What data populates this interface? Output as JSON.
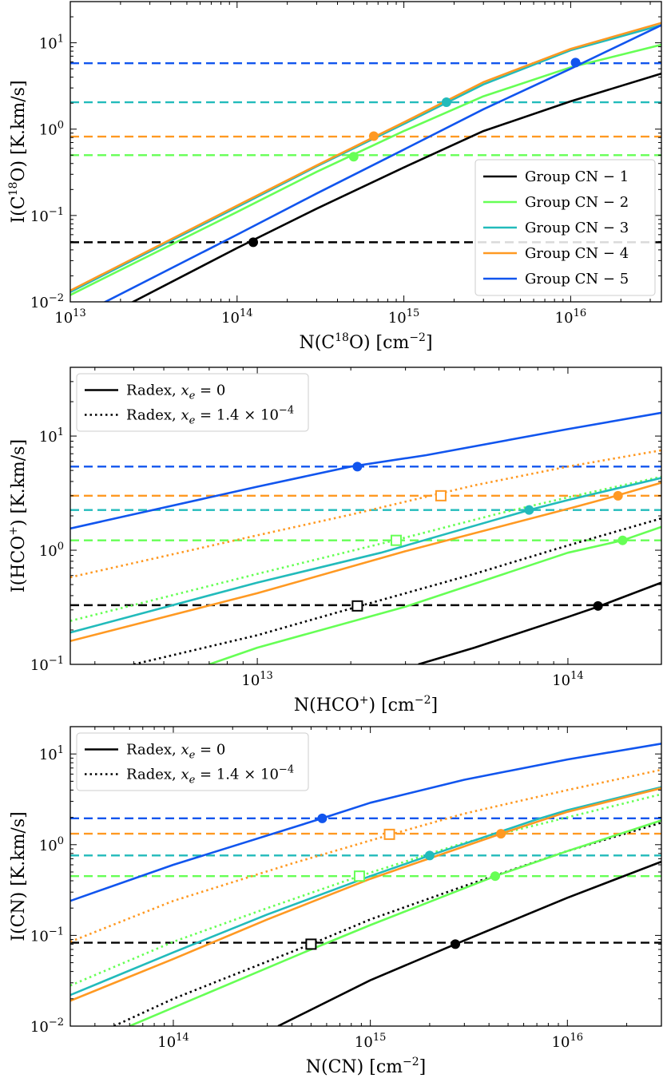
{
  "chart_data": [
    {
      "type": "line",
      "panel": "top",
      "xscale": "log",
      "yscale": "log",
      "xlim": [
        10000000000000.0,
        3.5e+16
      ],
      "ylim": [
        0.01,
        30
      ],
      "xlabel": {
        "pre": "N(C",
        "sup": "18",
        "post": "O) [cm",
        "sup2": "−2",
        "end": "]"
      },
      "ylabel": {
        "pre": "I(C",
        "sup": "18",
        "post": "O) [K.km/s]"
      },
      "xticks": [
        {
          "v": 10000000000000.0,
          "b": "10",
          "e": "13"
        },
        {
          "v": 100000000000000.0,
          "b": "10",
          "e": "14"
        },
        {
          "v": 1000000000000000.0,
          "b": "10",
          "e": "15"
        },
        {
          "v": 1e+16,
          "b": "10",
          "e": "16"
        }
      ],
      "yticks": [
        {
          "v": 0.01,
          "b": "10",
          "e": "−2"
        },
        {
          "v": 0.1,
          "b": "10",
          "e": "−1"
        },
        {
          "v": 1,
          "b": "10",
          "e": "0"
        },
        {
          "v": 10,
          "b": "10",
          "e": "1"
        }
      ],
      "legend": {
        "position": "lower right",
        "entries": [
          {
            "label": "Group CN − 1",
            "color": "#000000",
            "dash": "solid"
          },
          {
            "label": "Group CN − 2",
            "color": "#66ff55",
            "dash": "solid"
          },
          {
            "label": "Group CN − 3",
            "color": "#22bbbb",
            "dash": "solid"
          },
          {
            "label": "Group CN − 4",
            "color": "#ff9922",
            "dash": "solid"
          },
          {
            "label": "Group CN − 5",
            "color": "#1155ee",
            "dash": "solid"
          }
        ]
      },
      "series": [
        {
          "name": "Group CN − 1",
          "color": "#000000",
          "dash": "solid",
          "x": [
            10000000000000.0,
            100000000000000.0,
            300000000000000.0,
            1000000000000000.0,
            3000000000000000.0,
            1e+16,
            3.5e+16
          ],
          "y": [
            0.0042,
            0.042,
            0.12,
            0.36,
            0.95,
            2.1,
            4.4
          ]
        },
        {
          "name": "Group CN − 2",
          "color": "#66ff55",
          "dash": "solid",
          "x": [
            10000000000000.0,
            100000000000000.0,
            300000000000000.0,
            1000000000000000.0,
            3000000000000000.0,
            1e+16,
            3.5e+16
          ],
          "y": [
            0.012,
            0.11,
            0.32,
            0.95,
            2.4,
            5.2,
            9.5
          ]
        },
        {
          "name": "Group CN − 3",
          "color": "#22bbbb",
          "dash": "solid",
          "x": [
            10000000000000.0,
            100000000000000.0,
            300000000000000.0,
            1000000000000000.0,
            3000000000000000.0,
            1e+16,
            3.5e+16
          ],
          "y": [
            0.013,
            0.125,
            0.37,
            1.15,
            3.3,
            8.2,
            16
          ]
        },
        {
          "name": "Group CN − 4",
          "color": "#ff9922",
          "dash": "solid",
          "x": [
            10000000000000.0,
            100000000000000.0,
            300000000000000.0,
            1000000000000000.0,
            3000000000000000.0,
            1e+16,
            3.5e+16
          ],
          "y": [
            0.0135,
            0.13,
            0.38,
            1.2,
            3.5,
            8.5,
            17
          ]
        },
        {
          "name": "Group CN − 5",
          "color": "#1155ee",
          "dash": "solid",
          "x": [
            10000000000000.0,
            100000000000000.0,
            300000000000000.0,
            1000000000000000.0,
            3000000000000000.0,
            1e+16,
            3.5e+16
          ],
          "y": [
            0.0062,
            0.06,
            0.18,
            0.58,
            1.7,
            5.0,
            16
          ]
        }
      ],
      "hlines": [
        {
          "y": 5.8,
          "color": "#1155ee"
        },
        {
          "y": 2.05,
          "color": "#22bbbb"
        },
        {
          "y": 0.82,
          "color": "#ff9922"
        },
        {
          "y": 0.5,
          "color": "#66ff55"
        },
        {
          "y": 0.049,
          "color": "#000000"
        }
      ],
      "points": [
        {
          "x": 125000000000000.0,
          "y": 0.049,
          "color": "#000000",
          "marker": "circle"
        },
        {
          "x": 500000000000000.0,
          "y": 0.48,
          "color": "#66ff55",
          "marker": "circle"
        },
        {
          "x": 660000000000000.0,
          "y": 0.83,
          "color": "#ff9922",
          "marker": "circle"
        },
        {
          "x": 1800000000000000.0,
          "y": 2.05,
          "color": "#22bbbb",
          "marker": "circle"
        },
        {
          "x": 1.07e+16,
          "y": 5.9,
          "color": "#1155ee",
          "marker": "circle"
        }
      ]
    },
    {
      "type": "line",
      "panel": "middle",
      "xscale": "log",
      "yscale": "log",
      "xlim": [
        2500000000000.0,
        200000000000000.0
      ],
      "ylim": [
        0.1,
        40
      ],
      "xlabel": {
        "pre": "N(HCO",
        "sup": "+",
        "post": ") [cm",
        "sup2": "−2",
        "end": "]"
      },
      "ylabel": {
        "pre": "I(HCO",
        "sup": "+",
        "post": ") [K.km/s]"
      },
      "xticks": [
        {
          "v": 10000000000000.0,
          "b": "10",
          "e": "13"
        },
        {
          "v": 100000000000000.0,
          "b": "10",
          "e": "14"
        }
      ],
      "yticks": [
        {
          "v": 0.1,
          "b": "10",
          "e": "−1"
        },
        {
          "v": 1,
          "b": "10",
          "e": "0"
        },
        {
          "v": 10,
          "b": "10",
          "e": "1"
        }
      ],
      "legend": {
        "position": "upper left",
        "entries": [
          {
            "label": "Radex, ",
            "math": "x",
            "sub": "e",
            "tail": " = 0",
            "color": "#000000",
            "dash": "solid"
          },
          {
            "label": "Radex, ",
            "math": "x",
            "sub": "e",
            "tail": " = 1.4 × 10",
            "sup": "−4",
            "color": "#000000",
            "dash": "dotted"
          }
        ]
      },
      "series": [
        {
          "name": "blue solid",
          "color": "#1155ee",
          "dash": "solid",
          "x": [
            2500000000000.0,
            10000000000000.0,
            20000000000000.0,
            35000000000000.0,
            100000000000000.0,
            200000000000000.0
          ],
          "y": [
            1.55,
            3.6,
            5.4,
            6.8,
            11.5,
            16
          ]
        },
        {
          "name": "orange dotted",
          "color": "#ff9922",
          "dash": "dotted",
          "x": [
            2500000000000.0,
            10000000000000.0,
            20000000000000.0,
            50000000000000.0,
            100000000000000.0,
            200000000000000.0
          ],
          "y": [
            0.58,
            1.35,
            2.05,
            3.7,
            5.4,
            7.5
          ]
        },
        {
          "name": "green dotted",
          "color": "#66ff55",
          "dash": "dotted",
          "x": [
            2500000000000.0,
            10000000000000.0,
            28000000000000.0,
            60000000000000.0,
            100000000000000.0,
            200000000000000.0
          ],
          "y": [
            0.24,
            0.62,
            1.23,
            2.1,
            2.9,
            4.4
          ]
        },
        {
          "name": "cyan solid",
          "color": "#22bbbb",
          "dash": "solid",
          "x": [
            2500000000000.0,
            10000000000000.0,
            25000000000000.0,
            75000000000000.0,
            100000000000000.0,
            200000000000000.0
          ],
          "y": [
            0.19,
            0.52,
            0.95,
            2.25,
            2.75,
            4.3
          ]
        },
        {
          "name": "orange solid",
          "color": "#ff9922",
          "dash": "solid",
          "x": [
            2500000000000.0,
            10000000000000.0,
            30000000000000.0,
            100000000000000.0,
            140000000000000.0,
            200000000000000.0
          ],
          "y": [
            0.16,
            0.42,
            0.98,
            2.3,
            2.95,
            3.9
          ]
        },
        {
          "name": "black dotted",
          "color": "#000000",
          "dash": "dotted",
          "x": [
            4000000000000.0,
            10000000000000.0,
            21000000000000.0,
            50000000000000.0,
            100000000000000.0,
            200000000000000.0
          ],
          "y": [
            0.1,
            0.18,
            0.32,
            0.62,
            1.1,
            1.9
          ]
        },
        {
          "name": "green solid",
          "color": "#66ff55",
          "dash": "solid",
          "x": [
            7000000000000.0,
            10000000000000.0,
            30000000000000.0,
            100000000000000.0,
            150000000000000.0,
            200000000000000.0
          ],
          "y": [
            0.1,
            0.14,
            0.32,
            0.95,
            1.22,
            1.6
          ]
        },
        {
          "name": "black solid",
          "color": "#000000",
          "dash": "solid",
          "x": [
            33000000000000.0,
            50000000000000.0,
            100000000000000.0,
            125000000000000.0,
            200000000000000.0
          ],
          "y": [
            0.1,
            0.14,
            0.26,
            0.32,
            0.52
          ]
        }
      ],
      "hlines": [
        {
          "y": 5.4,
          "color": "#1155ee"
        },
        {
          "y": 3.0,
          "color": "#ff9922"
        },
        {
          "y": 2.25,
          "color": "#22bbbb"
        },
        {
          "y": 1.22,
          "color": "#66ff55"
        },
        {
          "y": 0.33,
          "color": "#000000"
        }
      ],
      "points": [
        {
          "x": 21000000000000.0,
          "y": 5.4,
          "color": "#1155ee",
          "marker": "circle"
        },
        {
          "x": 39000000000000.0,
          "y": 3.0,
          "color": "#ff9922",
          "marker": "square"
        },
        {
          "x": 145000000000000.0,
          "y": 3.0,
          "color": "#ff9922",
          "marker": "circle"
        },
        {
          "x": 75000000000000.0,
          "y": 2.25,
          "color": "#22bbbb",
          "marker": "circle"
        },
        {
          "x": 28000000000000.0,
          "y": 1.22,
          "color": "#66ff55",
          "marker": "square"
        },
        {
          "x": 150000000000000.0,
          "y": 1.22,
          "color": "#66ff55",
          "marker": "circle"
        },
        {
          "x": 21000000000000.0,
          "y": 0.325,
          "color": "#000000",
          "marker": "square"
        },
        {
          "x": 125000000000000.0,
          "y": 0.325,
          "color": "#000000",
          "marker": "circle"
        }
      ]
    },
    {
      "type": "line",
      "panel": "bottom",
      "xscale": "log",
      "yscale": "log",
      "xlim": [
        30000000000000.0,
        3e+16
      ],
      "ylim": [
        0.01,
        20
      ],
      "xlabel": {
        "pre": "N(CN) [cm",
        "sup": "",
        "post": "",
        "sup2": "−2",
        "end": "]"
      },
      "ylabel": {
        "pre": "I(CN) [K.km/s]",
        "sup": "",
        "post": ""
      },
      "xticks": [
        {
          "v": 100000000000000.0,
          "b": "10",
          "e": "14"
        },
        {
          "v": 1000000000000000.0,
          "b": "10",
          "e": "15"
        },
        {
          "v": 1e+16,
          "b": "10",
          "e": "16"
        }
      ],
      "yticks": [
        {
          "v": 0.01,
          "b": "10",
          "e": "−2"
        },
        {
          "v": 0.1,
          "b": "10",
          "e": "−1"
        },
        {
          "v": 1,
          "b": "10",
          "e": "0"
        },
        {
          "v": 10,
          "b": "10",
          "e": "1"
        }
      ],
      "legend": {
        "position": "upper left",
        "entries": [
          {
            "label": "Radex, ",
            "math": "x",
            "sub": "e",
            "tail": " = 0",
            "color": "#000000",
            "dash": "solid"
          },
          {
            "label": "Radex, ",
            "math": "x",
            "sub": "e",
            "tail": " = 1.4 × 10",
            "sup": "−4",
            "color": "#000000",
            "dash": "dotted"
          }
        ]
      },
      "series": [
        {
          "name": "blue solid",
          "color": "#1155ee",
          "dash": "solid",
          "x": [
            30000000000000.0,
            100000000000000.0,
            570000000000000.0,
            1000000000000000.0,
            3000000000000000.0,
            1e+16,
            3e+16
          ],
          "y": [
            0.24,
            0.6,
            1.95,
            2.9,
            5.2,
            8.7,
            13
          ]
        },
        {
          "name": "orange dotted",
          "color": "#ff9922",
          "dash": "dotted",
          "x": [
            30000000000000.0,
            100000000000000.0,
            400000000000000.0,
            1250000000000000.0,
            3000000000000000.0,
            1e+16,
            3e+16
          ],
          "y": [
            0.085,
            0.24,
            0.62,
            1.28,
            2.2,
            4.0,
            6.7
          ]
        },
        {
          "name": "green dotted",
          "color": "#66ff55",
          "dash": "dotted",
          "x": [
            30000000000000.0,
            100000000000000.0,
            300000000000000.0,
            880000000000000.0,
            3000000000000000.0,
            1e+16,
            3e+16
          ],
          "y": [
            0.028,
            0.085,
            0.2,
            0.45,
            1.05,
            2.0,
            3.6
          ]
        },
        {
          "name": "cyan solid",
          "color": "#22bbbb",
          "dash": "solid",
          "x": [
            30000000000000.0,
            100000000000000.0,
            300000000000000.0,
            1000000000000000.0,
            2000000000000000.0,
            7000000000000000.0,
            1e+16,
            3e+16
          ],
          "y": [
            0.022,
            0.065,
            0.17,
            0.45,
            0.76,
            1.9,
            2.4,
            4.3
          ]
        },
        {
          "name": "orange solid",
          "color": "#ff9922",
          "dash": "solid",
          "x": [
            30000000000000.0,
            100000000000000.0,
            300000000000000.0,
            1000000000000000.0,
            4600000000000000.0,
            1e+16,
            3e+16
          ],
          "y": [
            0.019,
            0.055,
            0.15,
            0.42,
            1.32,
            2.3,
            4.2
          ]
        },
        {
          "name": "black dotted",
          "color": "#000000",
          "dash": "dotted",
          "x": [
            50000000000000.0,
            100000000000000.0,
            500000000000000.0,
            1000000000000000.0,
            3000000000000000.0,
            1e+16,
            3e+16
          ],
          "y": [
            0.01,
            0.02,
            0.08,
            0.15,
            0.35,
            0.85,
            1.75
          ]
        },
        {
          "name": "green solid",
          "color": "#66ff55",
          "dash": "solid",
          "x": [
            60000000000000.0,
            100000000000000.0,
            500000000000000.0,
            1000000000000000.0,
            4300000000000000.0,
            1e+16,
            3e+16
          ],
          "y": [
            0.01,
            0.016,
            0.07,
            0.13,
            0.45,
            0.85,
            1.85
          ]
        },
        {
          "name": "black solid",
          "color": "#000000",
          "dash": "solid",
          "x": [
            340000000000000.0,
            1000000000000000.0,
            2700000000000000.0,
            1e+16,
            3e+16
          ],
          "y": [
            0.01,
            0.032,
            0.08,
            0.26,
            0.65
          ]
        }
      ],
      "hlines": [
        {
          "y": 1.95,
          "color": "#1155ee"
        },
        {
          "y": 1.32,
          "color": "#ff9922"
        },
        {
          "y": 0.76,
          "color": "#22bbbb"
        },
        {
          "y": 0.45,
          "color": "#66ff55"
        },
        {
          "y": 0.083,
          "color": "#000000"
        }
      ],
      "points": [
        {
          "x": 570000000000000.0,
          "y": 1.95,
          "color": "#1155ee",
          "marker": "circle"
        },
        {
          "x": 1250000000000000.0,
          "y": 1.3,
          "color": "#ff9922",
          "marker": "square"
        },
        {
          "x": 4600000000000000.0,
          "y": 1.32,
          "color": "#ff9922",
          "marker": "circle"
        },
        {
          "x": 2000000000000000.0,
          "y": 0.76,
          "color": "#22bbbb",
          "marker": "circle"
        },
        {
          "x": 880000000000000.0,
          "y": 0.45,
          "color": "#66ff55",
          "marker": "square"
        },
        {
          "x": 4300000000000000.0,
          "y": 0.45,
          "color": "#66ff55",
          "marker": "circle"
        },
        {
          "x": 500000000000000.0,
          "y": 0.08,
          "color": "#000000",
          "marker": "square"
        },
        {
          "x": 2700000000000000.0,
          "y": 0.08,
          "color": "#000000",
          "marker": "circle"
        }
      ]
    }
  ]
}
